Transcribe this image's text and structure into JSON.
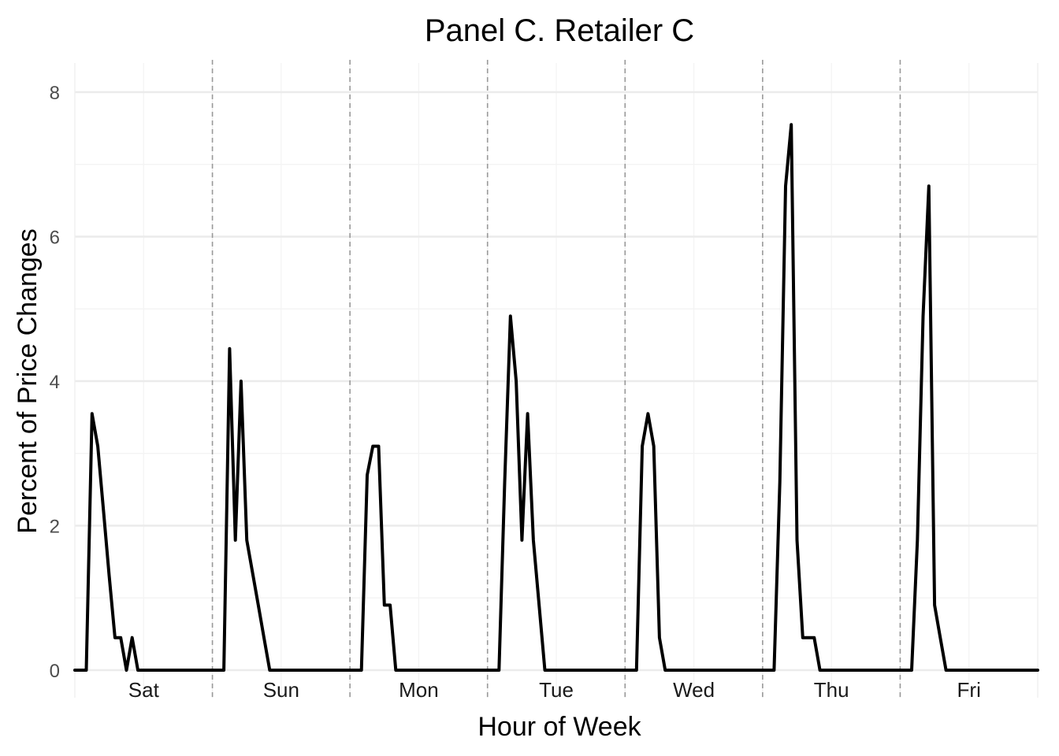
{
  "chart_data": {
    "type": "line",
    "title": "Panel C. Retailer C",
    "xlabel": "Hour of Week",
    "ylabel": "Percent of Price Changes",
    "ylim": [
      0,
      8.4
    ],
    "yticks": [
      "0",
      "2",
      "4",
      "6",
      "8"
    ],
    "xlim": [
      0,
      168
    ],
    "grid": true,
    "day_labels": [
      "Sat",
      "Sun",
      "Mon",
      "Tue",
      "Wed",
      "Thu",
      "Fri"
    ],
    "colors": {
      "line": "#000000",
      "grid": "#ebebeb",
      "separator": "#999999"
    },
    "series": [
      {
        "values": [
          [
            0,
            0
          ],
          [
            2,
            0
          ],
          [
            3,
            3.55
          ],
          [
            4,
            3.1
          ],
          [
            5,
            2.2
          ],
          [
            6,
            1.3
          ],
          [
            7,
            0.45
          ],
          [
            8,
            0.45
          ],
          [
            9,
            0
          ],
          [
            10,
            0.45
          ],
          [
            11,
            0
          ],
          [
            24,
            0
          ],
          [
            26,
            0
          ],
          [
            27,
            4.45
          ],
          [
            28,
            1.8
          ],
          [
            29,
            4.0
          ],
          [
            30,
            1.8
          ],
          [
            31,
            1.35
          ],
          [
            32,
            0.9
          ],
          [
            33,
            0.45
          ],
          [
            34,
            0
          ],
          [
            48,
            0
          ],
          [
            50,
            0
          ],
          [
            51,
            2.7
          ],
          [
            52,
            3.1
          ],
          [
            53,
            3.1
          ],
          [
            54,
            0.9
          ],
          [
            55,
            0.9
          ],
          [
            56,
            0
          ],
          [
            72,
            0
          ],
          [
            74,
            0
          ],
          [
            75,
            2.6
          ],
          [
            76,
            4.9
          ],
          [
            77,
            4.0
          ],
          [
            78,
            1.8
          ],
          [
            79,
            3.55
          ],
          [
            80,
            1.8
          ],
          [
            81,
            0.9
          ],
          [
            82,
            0
          ],
          [
            96,
            0
          ],
          [
            98,
            0
          ],
          [
            99,
            3.1
          ],
          [
            100,
            3.55
          ],
          [
            101,
            3.1
          ],
          [
            102,
            0.45
          ],
          [
            103,
            0
          ],
          [
            120,
            0
          ],
          [
            122,
            0
          ],
          [
            123,
            2.6
          ],
          [
            124,
            6.7
          ],
          [
            125,
            7.55
          ],
          [
            126,
            1.8
          ],
          [
            127,
            0.45
          ],
          [
            128,
            0.45
          ],
          [
            129,
            0.45
          ],
          [
            130,
            0
          ],
          [
            144,
            0
          ],
          [
            146,
            0
          ],
          [
            147,
            1.8
          ],
          [
            148,
            4.9
          ],
          [
            149,
            6.7
          ],
          [
            150,
            0.9
          ],
          [
            151,
            0.45
          ],
          [
            152,
            0
          ],
          [
            168,
            0
          ]
        ]
      }
    ]
  }
}
